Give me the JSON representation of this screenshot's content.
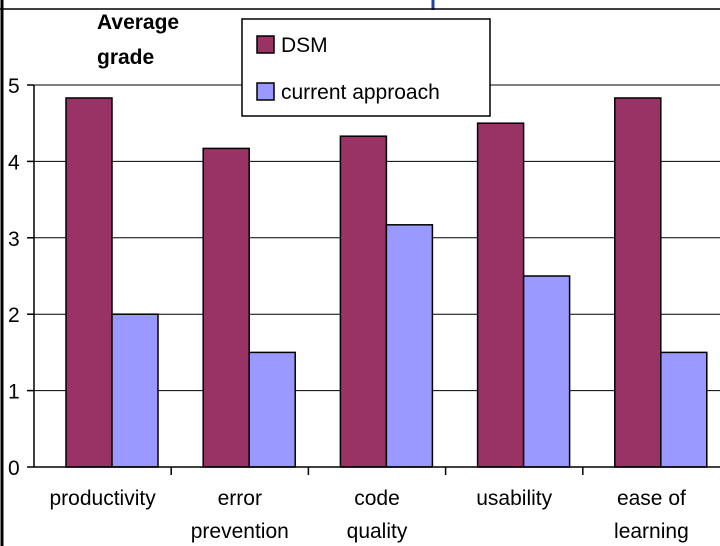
{
  "chart_data": {
    "type": "bar",
    "ylabel_lines": [
      "Average",
      "grade"
    ],
    "ylim": [
      0,
      5
    ],
    "yticks": [
      "0",
      "1",
      "2",
      "3",
      "4",
      "5"
    ],
    "categories": [
      [
        "productivity"
      ],
      [
        "error",
        "prevention"
      ],
      [
        "code",
        "quality"
      ],
      [
        "usability"
      ],
      [
        "ease of",
        "learning"
      ]
    ],
    "series": [
      {
        "name": "DSM",
        "color": "#993366",
        "values": [
          4.83,
          4.17,
          4.33,
          4.5,
          4.83
        ]
      },
      {
        "name": "current approach",
        "color": "#9999ff",
        "values": [
          2.0,
          1.5,
          3.17,
          2.5,
          1.5
        ]
      }
    ],
    "grid": true,
    "legend": "top-center"
  }
}
